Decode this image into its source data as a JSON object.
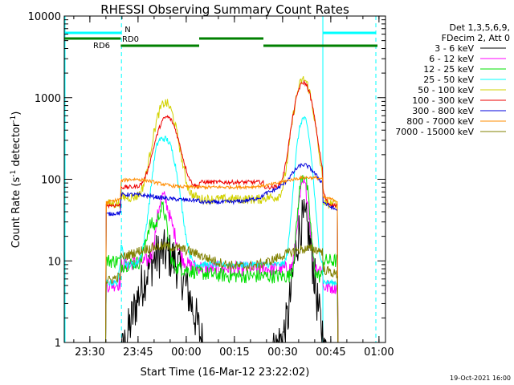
{
  "chart_data": {
    "type": "line",
    "title": "RHESSI Observing Summary Count Rates",
    "xlabel": "Start Time (16-Mar-12 23:22:02)",
    "ylabel_parts": [
      "Count Rate (s",
      "-1",
      " detector",
      "-1",
      ")"
    ],
    "ylabel": "Count Rate (s-1 detector-1)",
    "y_scale": "log",
    "ylim": [
      1,
      10000
    ],
    "xlim_minutes_after_start": [
      0,
      100
    ],
    "x_ticks": [
      {
        "label": "23:30",
        "t": 7.97
      },
      {
        "label": "23:45",
        "t": 22.97
      },
      {
        "label": "00:00",
        "t": 37.97
      },
      {
        "label": "00:15",
        "t": 52.97
      },
      {
        "label": "00:30",
        "t": 67.97
      },
      {
        "label": "00:45",
        "t": 82.97
      },
      {
        "label": "01:00",
        "t": 97.97
      }
    ],
    "y_ticks": [
      {
        "label": "1",
        "v": 1
      },
      {
        "label": "10",
        "v": 10
      },
      {
        "label": "100",
        "v": 100
      },
      {
        "label": "1000",
        "v": 1000
      },
      {
        "label": "10000",
        "v": 10000
      }
    ],
    "legend_header": [
      "Det 1,3,5,6,9,",
      "FDecim 2, Att 0"
    ],
    "legend_position": "right",
    "series": [
      {
        "name": "3 - 6 keV",
        "color": "#000000"
      },
      {
        "name": "6 - 12 keV",
        "color": "#ff00ff"
      },
      {
        "name": "12 - 25 keV",
        "color": "#00e000"
      },
      {
        "name": "25 - 50 keV",
        "color": "#00ffff"
      },
      {
        "name": "50 - 100 keV",
        "color": "#d2d200"
      },
      {
        "name": "100 - 300 keV",
        "color": "#ee0000"
      },
      {
        "name": "300 - 800 keV",
        "color": "#0000dd"
      },
      {
        "name": "800 - 7000 keV",
        "color": "#ff8c00"
      },
      {
        "name": "7000 - 15000 keV",
        "color": "#808000"
      }
    ],
    "observing_bars": [
      {
        "label": "N",
        "color": "#00ffff",
        "segments": [
          [
            0,
            17.8
          ],
          [
            80.5,
            97.0
          ]
        ],
        "level": "top",
        "label_t": 18.8
      },
      {
        "label": "RD0",
        "color": "#008000",
        "segments": [
          [
            0,
            17.6
          ],
          [
            42.0,
            62.0
          ]
        ],
        "level": "middle",
        "label_t": 18.0
      },
      {
        "label": "RD6",
        "color": "#008000",
        "segments": [
          [
            17.6,
            42.0
          ],
          [
            62.0,
            93.5
          ],
          [
            93.5,
            97.5
          ]
        ],
        "level": "bottom",
        "label_t": 9.0
      }
    ],
    "vertical_markers": [
      {
        "t": 0,
        "style": "solid",
        "color": "#00ffff"
      },
      {
        "t": 17.8,
        "style": "dashed",
        "color": "#00ffff"
      },
      {
        "t": 80.5,
        "style": "solid",
        "color": "#00ffff"
      },
      {
        "t": 97.0,
        "style": "dashed",
        "color": "#00ffff"
      }
    ],
    "profiles": {
      "orbit_night": [
        [
          0,
          17.8
        ],
        [
          80.5,
          97.0
        ]
      ],
      "attenuator_out_times": [
        13.5,
        17.6,
        42.0,
        62.0,
        83.5
      ],
      "flares": [
        {
          "peak_t": 32.0,
          "peak_counts_100_300": 600
        },
        {
          "peak_t": 74.5,
          "peak_counts_100_300": 1500
        }
      ]
    }
  },
  "footer": {
    "date": "19-Oct-2021 16:00"
  }
}
